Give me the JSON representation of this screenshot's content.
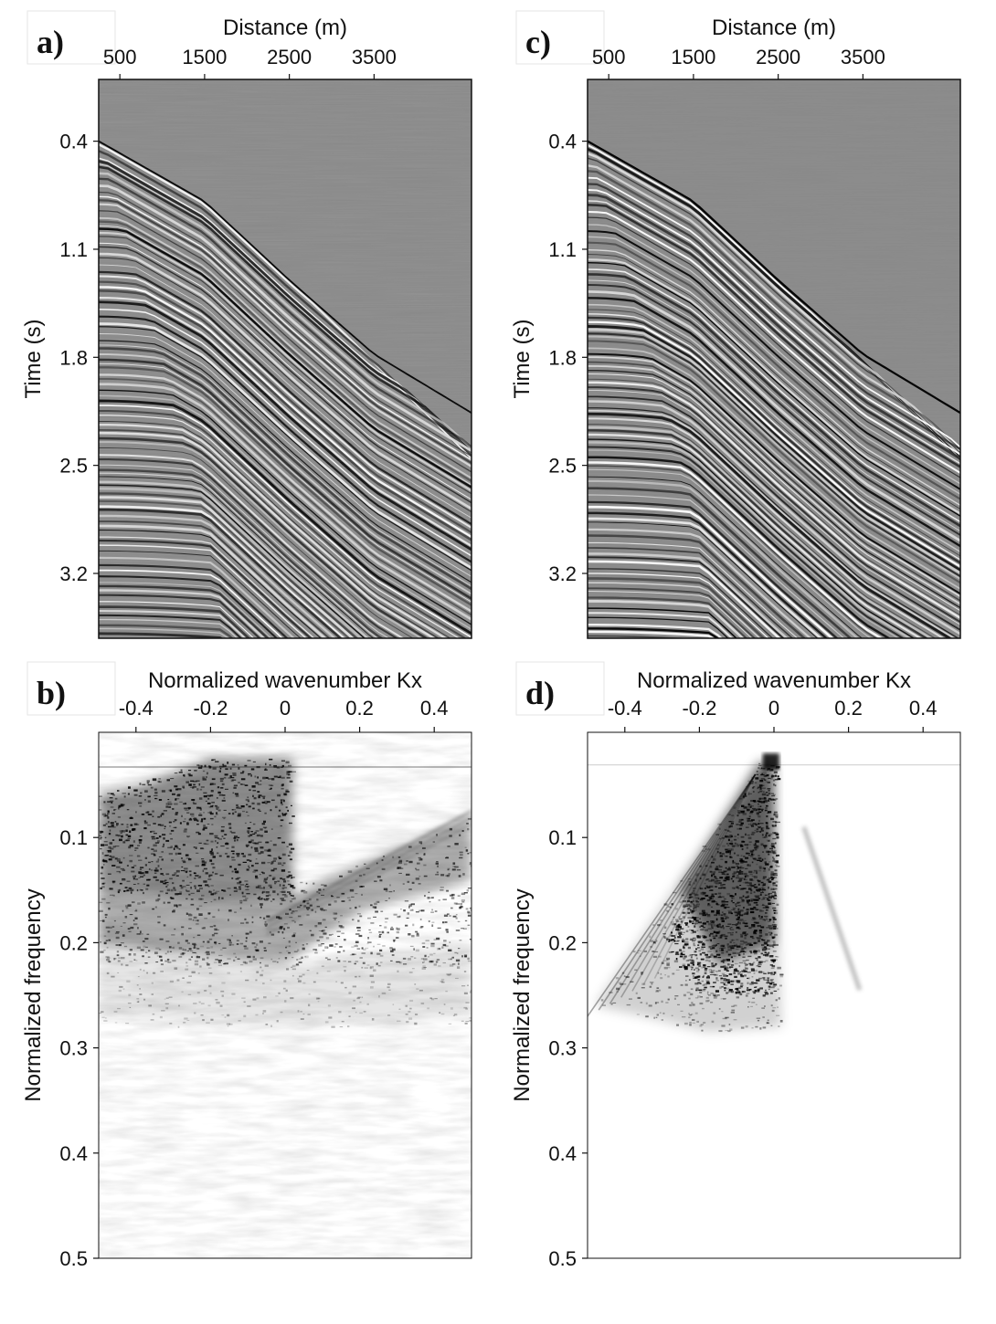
{
  "chart_data": [
    {
      "panel": "a)",
      "type": "heatmap",
      "xlabel": "Distance (m)",
      "ylabel": "Time (s)",
      "xticks": [
        500,
        1500,
        2500,
        3500
      ],
      "yticks": [
        0.4,
        1.1,
        1.8,
        2.5,
        3.2
      ],
      "xlim": [
        250,
        4650
      ],
      "ylim": [
        0.0,
        3.62
      ],
      "colormap": "grayscale wiggle image",
      "first_break": [
        [
          250,
          0.4
        ],
        [
          1500,
          0.79
        ],
        [
          2500,
          1.3
        ],
        [
          3500,
          1.78
        ],
        [
          4650,
          2.16
        ]
      ]
    },
    {
      "panel": "b)",
      "type": "heatmap",
      "xlabel": "Normalized wavenumber Kx",
      "ylabel": "Normalized frequency",
      "xticks": [
        -0.4,
        -0.2,
        0,
        0.2,
        0.4
      ],
      "yticks": [
        0.1,
        0.2,
        0.3,
        0.4,
        0.5
      ],
      "xlim": [
        -0.5,
        0.5
      ],
      "ylim": [
        0.0,
        0.5
      ],
      "colormap": "white-to-black amplitude"
    },
    {
      "panel": "c)",
      "type": "heatmap",
      "xlabel": "Distance (m)",
      "ylabel": "Time (s)",
      "xticks": [
        500,
        1500,
        2500,
        3500
      ],
      "yticks": [
        0.4,
        1.1,
        1.8,
        2.5,
        3.2
      ],
      "xlim": [
        250,
        4650
      ],
      "ylim": [
        0.0,
        3.62
      ],
      "colormap": "grayscale wiggle image",
      "first_break": [
        [
          250,
          0.4
        ],
        [
          1500,
          0.79
        ],
        [
          2500,
          1.3
        ],
        [
          3500,
          1.78
        ],
        [
          4650,
          2.16
        ]
      ]
    },
    {
      "panel": "d)",
      "type": "heatmap",
      "xlabel": "Normalized wavenumber Kx",
      "ylabel": "Normalized frequency",
      "xticks": [
        -0.4,
        -0.2,
        0,
        0.2,
        0.4
      ],
      "yticks": [
        0.1,
        0.2,
        0.3,
        0.4,
        0.5
      ],
      "xlim": [
        -0.5,
        0.5
      ],
      "ylim": [
        0.0,
        0.5
      ],
      "colormap": "white-to-black amplitude"
    }
  ],
  "colors": {
    "seismic_background": "#8a8a8a",
    "spectrum_background": "#ffffff",
    "ink": "#111111"
  }
}
